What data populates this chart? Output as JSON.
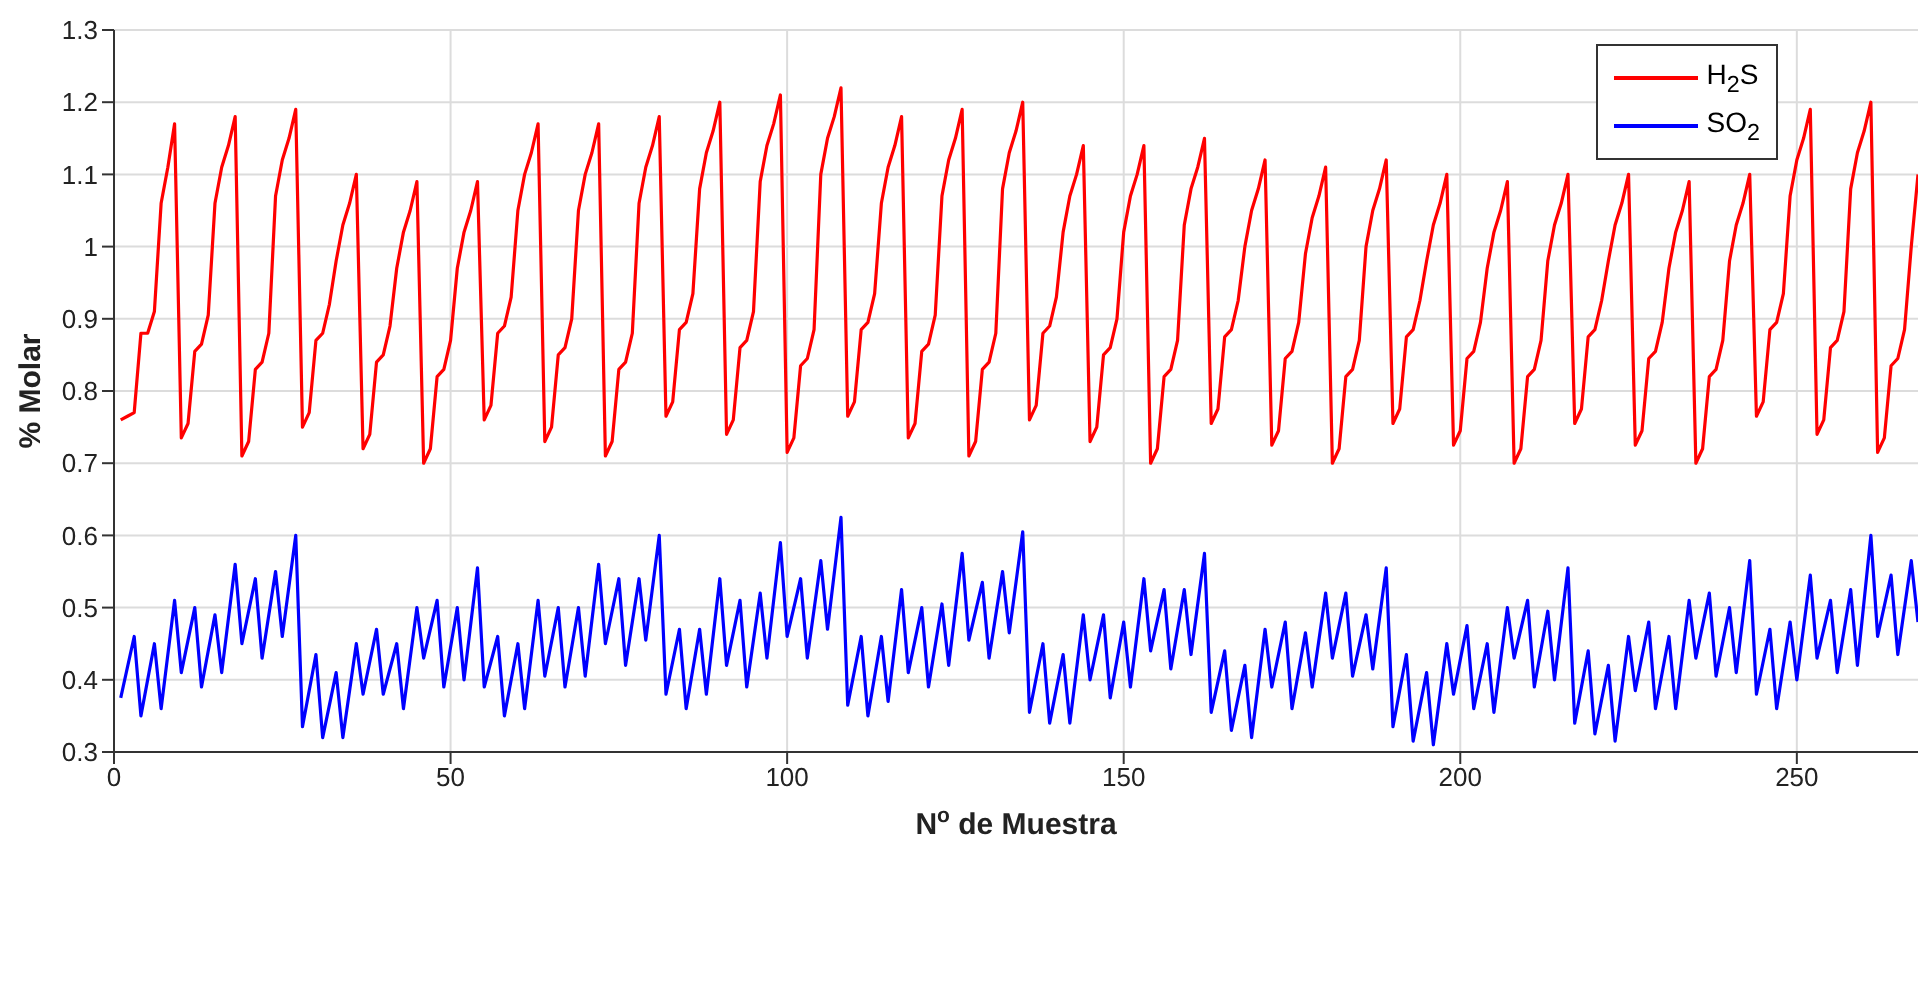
{
  "chart_data": {
    "type": "line",
    "xlabel": "N$^{o}$ de Muestra",
    "ylabel": "% Molar",
    "xlim": [
      0,
      268
    ],
    "xticks": [
      0,
      50,
      100,
      150,
      200,
      250
    ],
    "ylim": [
      0.3,
      1.3
    ],
    "yticks": [
      0.3,
      0.4,
      0.5,
      0.6,
      0.7,
      0.8,
      0.9,
      1,
      1.1,
      1.2,
      1.3
    ],
    "grid": true,
    "legend": "top right",
    "marker": "none",
    "line_style": "solid",
    "x": [
      1,
      2,
      3,
      4,
      5,
      6,
      7,
      8,
      9,
      10,
      11,
      12,
      13,
      14,
      15,
      16,
      17,
      18,
      19,
      20,
      21,
      22,
      23,
      24,
      25,
      26,
      27,
      28,
      29,
      30,
      31,
      32,
      33,
      34,
      35,
      36,
      37,
      38,
      39,
      40,
      41,
      42,
      43,
      44,
      45,
      46,
      47,
      48,
      49,
      50,
      51,
      52,
      53,
      54,
      55,
      56,
      57,
      58,
      59,
      60,
      61,
      62,
      63,
      64,
      65,
      66,
      67,
      68,
      69,
      70,
      71,
      72,
      73,
      74,
      75,
      76,
      77,
      78,
      79,
      80,
      81,
      82,
      83,
      84,
      85,
      86,
      87,
      88,
      89,
      90,
      91,
      92,
      93,
      94,
      95,
      96,
      97,
      98,
      99,
      100,
      101,
      102,
      103,
      104,
      105,
      106,
      107,
      108,
      109,
      110,
      111,
      112,
      113,
      114,
      115,
      116,
      117,
      118,
      119,
      120,
      121,
      122,
      123,
      124,
      125,
      126,
      127,
      128,
      129,
      130,
      131,
      132,
      133,
      134,
      135,
      136,
      137,
      138,
      139,
      140,
      141,
      142,
      143,
      144,
      145,
      146,
      147,
      148,
      149,
      150,
      151,
      152,
      153,
      154,
      155,
      156,
      157,
      158,
      159,
      160,
      161,
      162,
      163,
      164,
      165,
      166,
      167,
      168,
      169,
      170,
      171,
      172,
      173,
      174,
      175,
      176,
      177,
      178,
      179,
      180,
      181,
      182,
      183,
      184,
      185,
      186,
      187,
      188,
      189,
      190,
      191,
      192,
      193,
      194,
      195,
      196,
      197,
      198,
      199,
      200,
      201,
      202,
      203,
      204,
      205,
      206,
      207,
      208,
      209,
      210,
      211,
      212,
      213,
      214,
      215,
      216,
      217,
      218,
      219,
      220,
      221,
      222,
      223,
      224,
      225,
      226,
      227,
      228,
      229,
      230,
      231,
      232,
      233,
      234,
      235,
      236,
      237,
      238,
      239,
      240,
      241,
      242,
      243,
      244,
      245,
      246,
      247,
      248,
      249,
      250,
      251,
      252,
      253,
      254,
      255,
      256,
      257,
      258,
      259,
      260,
      261,
      262,
      263,
      264,
      265,
      266,
      267,
      268
    ],
    "series": [
      {
        "name": "H$_{2}$S",
        "color": "#ff0000",
        "values": [
          0.76,
          0.765,
          0.77,
          0.88,
          0.88,
          0.91,
          1.06,
          1.11,
          1.17,
          0.735,
          0.755,
          0.855,
          0.865,
          0.905,
          1.06,
          1.11,
          1.14,
          1.18,
          0.71,
          0.73,
          0.83,
          0.84,
          0.88,
          1.07,
          1.12,
          1.15,
          1.19,
          0.75,
          0.77,
          0.87,
          0.88,
          0.92,
          0.98,
          1.03,
          1.06,
          1.1,
          0.72,
          0.74,
          0.84,
          0.85,
          0.89,
          0.97,
          1.02,
          1.05,
          1.09,
          0.7,
          0.72,
          0.82,
          0.83,
          0.87,
          0.97,
          1.02,
          1.05,
          1.09,
          0.76,
          0.78,
          0.88,
          0.89,
          0.93,
          1.05,
          1.1,
          1.13,
          1.17,
          0.73,
          0.75,
          0.85,
          0.86,
          0.9,
          1.05,
          1.1,
          1.13,
          1.17,
          0.71,
          0.73,
          0.83,
          0.84,
          0.88,
          1.06,
          1.11,
          1.14,
          1.18,
          0.765,
          0.785,
          0.885,
          0.895,
          0.935,
          1.08,
          1.13,
          1.16,
          1.2,
          0.74,
          0.76,
          0.86,
          0.87,
          0.91,
          1.09,
          1.14,
          1.17,
          1.21,
          0.715,
          0.735,
          0.835,
          0.845,
          0.885,
          1.1,
          1.15,
          1.18,
          1.22,
          0.765,
          0.785,
          0.885,
          0.895,
          0.935,
          1.06,
          1.11,
          1.14,
          1.18,
          0.735,
          0.755,
          0.855,
          0.865,
          0.905,
          1.07,
          1.12,
          1.15,
          1.19,
          0.71,
          0.73,
          0.83,
          0.84,
          0.88,
          1.08,
          1.13,
          1.16,
          1.2,
          0.76,
          0.78,
          0.88,
          0.89,
          0.93,
          1.02,
          1.07,
          1.1,
          1.14,
          0.73,
          0.75,
          0.85,
          0.86,
          0.9,
          1.02,
          1.07,
          1.1,
          1.14,
          0.7,
          0.72,
          0.82,
          0.83,
          0.87,
          1.03,
          1.08,
          1.11,
          1.15,
          0.755,
          0.775,
          0.875,
          0.885,
          0.925,
          1.0,
          1.05,
          1.08,
          1.12,
          0.725,
          0.745,
          0.845,
          0.855,
          0.895,
          0.99,
          1.04,
          1.07,
          1.11,
          0.7,
          0.72,
          0.82,
          0.83,
          0.87,
          1.0,
          1.05,
          1.08,
          1.12,
          0.755,
          0.775,
          0.875,
          0.885,
          0.925,
          0.98,
          1.03,
          1.06,
          1.1,
          0.725,
          0.745,
          0.845,
          0.855,
          0.895,
          0.97,
          1.02,
          1.05,
          1.09,
          0.7,
          0.72,
          0.82,
          0.83,
          0.87,
          0.98,
          1.03,
          1.06,
          1.1,
          0.755,
          0.775,
          0.875,
          0.885,
          0.925,
          0.98,
          1.03,
          1.06,
          1.1,
          0.725,
          0.745,
          0.845,
          0.855,
          0.895,
          0.97,
          1.02,
          1.05,
          1.09,
          0.7,
          0.72,
          0.82,
          0.83,
          0.87,
          0.98,
          1.03,
          1.06,
          1.1,
          0.765,
          0.785,
          0.885,
          0.895,
          0.935,
          1.07,
          1.12,
          1.15,
          1.19,
          0.74,
          0.76,
          0.86,
          0.87,
          0.91,
          1.08,
          1.13,
          1.16,
          1.2,
          0.715,
          0.735,
          0.835,
          0.845,
          0.885,
          1.0,
          1.1
        ]
      },
      {
        "name": "SO$_{2}$",
        "color": "#0000ff",
        "x": [
          1,
          3,
          4,
          6,
          7,
          9,
          10,
          12,
          13,
          15,
          16,
          18,
          19,
          21,
          22,
          24,
          25,
          27,
          28,
          30,
          31,
          33,
          34,
          36,
          37,
          39,
          40,
          42,
          43,
          45,
          46,
          48,
          49,
          51,
          52,
          54,
          55,
          57,
          58,
          60,
          61,
          63,
          64,
          66,
          67,
          69,
          70,
          72,
          73,
          75,
          76,
          78,
          79,
          81,
          82,
          84,
          85,
          87,
          88,
          90,
          91,
          93,
          94,
          96,
          97,
          99,
          100,
          102,
          103,
          105,
          106,
          108,
          109,
          111,
          112,
          114,
          115,
          117,
          118,
          120,
          121,
          123,
          124,
          126,
          127,
          129,
          130,
          132,
          133,
          135,
          136,
          138,
          139,
          141,
          142,
          144,
          145,
          147,
          148,
          150,
          151,
          153,
          154,
          156,
          157,
          159,
          160,
          162,
          163,
          165,
          166,
          168,
          169,
          171,
          172,
          174,
          175,
          177,
          178,
          180,
          181,
          183,
          184,
          186,
          187,
          189,
          190,
          192,
          193,
          195,
          196,
          198,
          199,
          201,
          202,
          204,
          205,
          207,
          208,
          210,
          211,
          213,
          214,
          216,
          217,
          219,
          220,
          222,
          223,
          225,
          226,
          228,
          229,
          231,
          232,
          234,
          235,
          237,
          238,
          240,
          241,
          243,
          244,
          246,
          247,
          249,
          250,
          252,
          253,
          255,
          256,
          258,
          259,
          261,
          262,
          264,
          265,
          267,
          268
        ],
        "values": [
          0.375,
          0.46,
          0.35,
          0.45,
          0.36,
          0.51,
          0.41,
          0.5,
          0.39,
          0.49,
          0.41,
          0.56,
          0.45,
          0.54,
          0.43,
          0.55,
          0.46,
          0.6,
          0.335,
          0.435,
          0.32,
          0.41,
          0.32,
          0.45,
          0.38,
          0.47,
          0.38,
          0.45,
          0.36,
          0.5,
          0.43,
          0.51,
          0.39,
          0.5,
          0.4,
          0.555,
          0.39,
          0.46,
          0.35,
          0.45,
          0.36,
          0.51,
          0.405,
          0.5,
          0.39,
          0.5,
          0.405,
          0.56,
          0.45,
          0.54,
          0.42,
          0.54,
          0.455,
          0.6,
          0.38,
          0.47,
          0.36,
          0.47,
          0.38,
          0.54,
          0.42,
          0.51,
          0.39,
          0.52,
          0.43,
          0.59,
          0.46,
          0.54,
          0.43,
          0.565,
          0.47,
          0.625,
          0.365,
          0.46,
          0.35,
          0.46,
          0.37,
          0.525,
          0.41,
          0.5,
          0.39,
          0.505,
          0.42,
          0.575,
          0.455,
          0.535,
          0.43,
          0.55,
          0.465,
          0.605,
          0.355,
          0.45,
          0.34,
          0.435,
          0.34,
          0.49,
          0.4,
          0.49,
          0.375,
          0.48,
          0.39,
          0.54,
          0.44,
          0.525,
          0.415,
          0.525,
          0.435,
          0.575,
          0.355,
          0.44,
          0.33,
          0.42,
          0.32,
          0.47,
          0.39,
          0.48,
          0.36,
          0.465,
          0.39,
          0.52,
          0.43,
          0.52,
          0.405,
          0.49,
          0.415,
          0.555,
          0.335,
          0.435,
          0.315,
          0.41,
          0.31,
          0.45,
          0.38,
          0.475,
          0.36,
          0.45,
          0.355,
          0.5,
          0.43,
          0.51,
          0.39,
          0.495,
          0.4,
          0.555,
          0.34,
          0.44,
          0.325,
          0.42,
          0.315,
          0.46,
          0.385,
          0.48,
          0.36,
          0.46,
          0.36,
          0.51,
          0.43,
          0.52,
          0.405,
          0.5,
          0.41,
          0.565,
          0.38,
          0.47,
          0.36,
          0.48,
          0.4,
          0.545,
          0.43,
          0.51,
          0.41,
          0.525,
          0.42,
          0.6,
          0.46,
          0.545,
          0.435,
          0.565,
          0.48
        ]
      }
    ]
  }
}
